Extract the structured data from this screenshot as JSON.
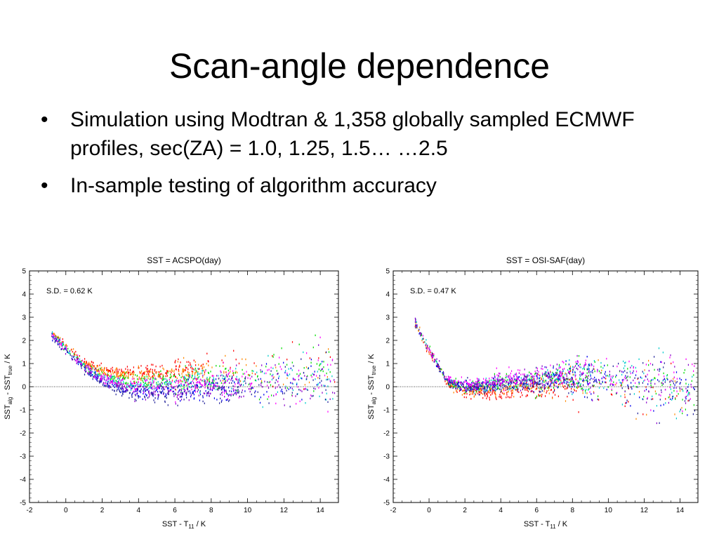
{
  "slide": {
    "title": "Scan-angle dependence",
    "bullets": [
      "Simulation using Modtran & 1,358 globally sampled ECMWF profiles, sec(ZA) = 1.0, 1.25, 1.5… …2.5",
      "In-sample testing of algorithm accuracy"
    ]
  },
  "colors": {
    "series": [
      "#ff0000",
      "#ff8800",
      "#00dd00",
      "#00cccc",
      "#0000ee",
      "#222299",
      "#8800cc",
      "#ff00ff"
    ]
  },
  "chart_data": [
    {
      "type": "scatter",
      "title": "SST = ACSPO(day)",
      "sd_label": "S.D. = 0.62 K",
      "xlabel": {
        "main": "SST - T",
        "sub": "11",
        "unit": " / K"
      },
      "ylabel": {
        "p1": "SST",
        "s1": "alg",
        "p2": " - SST",
        "s2": "true",
        "p3": " / K"
      },
      "xlim": [
        -2,
        15
      ],
      "ylim": [
        -5,
        5
      ],
      "xticks": [
        -2,
        0,
        2,
        4,
        6,
        8,
        10,
        12,
        14
      ],
      "yticks": [
        5,
        4,
        3,
        2,
        1,
        0,
        -1,
        -2,
        -3,
        -4,
        -5
      ],
      "zero_line": true,
      "trend": {
        "centers": [
          [
            -0.8,
            2.3
          ],
          [
            0,
            1.6
          ],
          [
            1,
            0.9
          ],
          [
            2,
            0.45
          ],
          [
            3,
            0.2
          ],
          [
            4,
            0.15
          ],
          [
            5,
            0.15
          ],
          [
            6,
            0.2
          ],
          [
            8,
            0.3
          ],
          [
            10,
            0.4
          ],
          [
            12,
            0.5
          ],
          [
            14,
            0.5
          ]
        ],
        "series_offset": [
          0.5,
          0.35,
          0.1,
          -0.05,
          -0.35,
          -0.5,
          -0.3,
          -0.1
        ],
        "spread": [
          0.15,
          0.2,
          0.3,
          0.45,
          0.6,
          0.9,
          1.2
        ]
      }
    },
    {
      "type": "scatter",
      "title": "SST = OSI-SAF(day)",
      "sd_label": "S.D. = 0.47 K",
      "xlabel": {
        "main": "SST - T",
        "sub": "11",
        "unit": " / K"
      },
      "ylabel": {
        "p1": "SST",
        "s1": "alg",
        "p2": " - SST",
        "s2": "true",
        "p3": " / K"
      },
      "xlim": [
        -2,
        15
      ],
      "ylim": [
        -5,
        5
      ],
      "xticks": [
        -2,
        0,
        2,
        4,
        6,
        8,
        10,
        12,
        14
      ],
      "yticks": [
        5,
        4,
        3,
        2,
        1,
        0,
        -1,
        -2,
        -3,
        -4,
        -5
      ],
      "zero_line": true,
      "trend": {
        "centers": [
          [
            -0.8,
            2.8
          ],
          [
            0,
            1.5
          ],
          [
            1,
            0.2
          ],
          [
            2,
            -0.1
          ],
          [
            4,
            0.0
          ],
          [
            6,
            0.2
          ],
          [
            8,
            0.3
          ],
          [
            10,
            0.2
          ],
          [
            12,
            0.0
          ],
          [
            14,
            -0.2
          ]
        ],
        "series_offset": [
          -0.25,
          -0.1,
          0.1,
          0.15,
          0.1,
          0.05,
          0.2,
          0.3
        ],
        "spread": [
          0.15,
          0.25,
          0.35,
          0.5,
          0.7,
          0.9,
          1.1
        ]
      }
    }
  ]
}
